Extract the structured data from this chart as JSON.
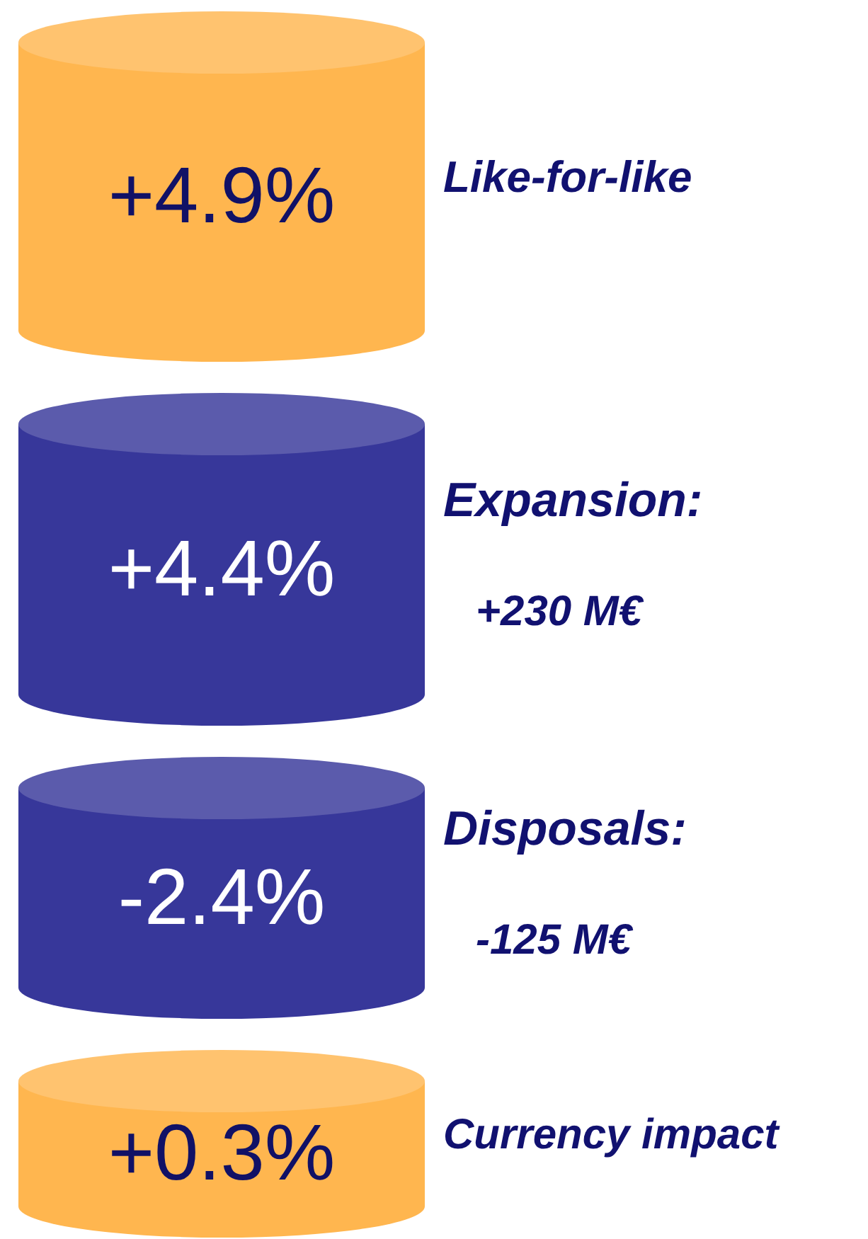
{
  "chart_data": {
    "type": "other",
    "categories": [
      "Like-for-like",
      "Expansion:\n+230 M€",
      "Disposals:\n-125 M€",
      "Currency impact"
    ],
    "values": [
      4.9,
      4.4,
      -2.4,
      0.3
    ],
    "value_labels": [
      "+4.9%",
      "+4.4%",
      "-2.4%",
      "+0.3%"
    ],
    "colors": [
      "#ffb64f",
      "#37379a",
      "#37379a",
      "#ffb64f"
    ]
  }
}
